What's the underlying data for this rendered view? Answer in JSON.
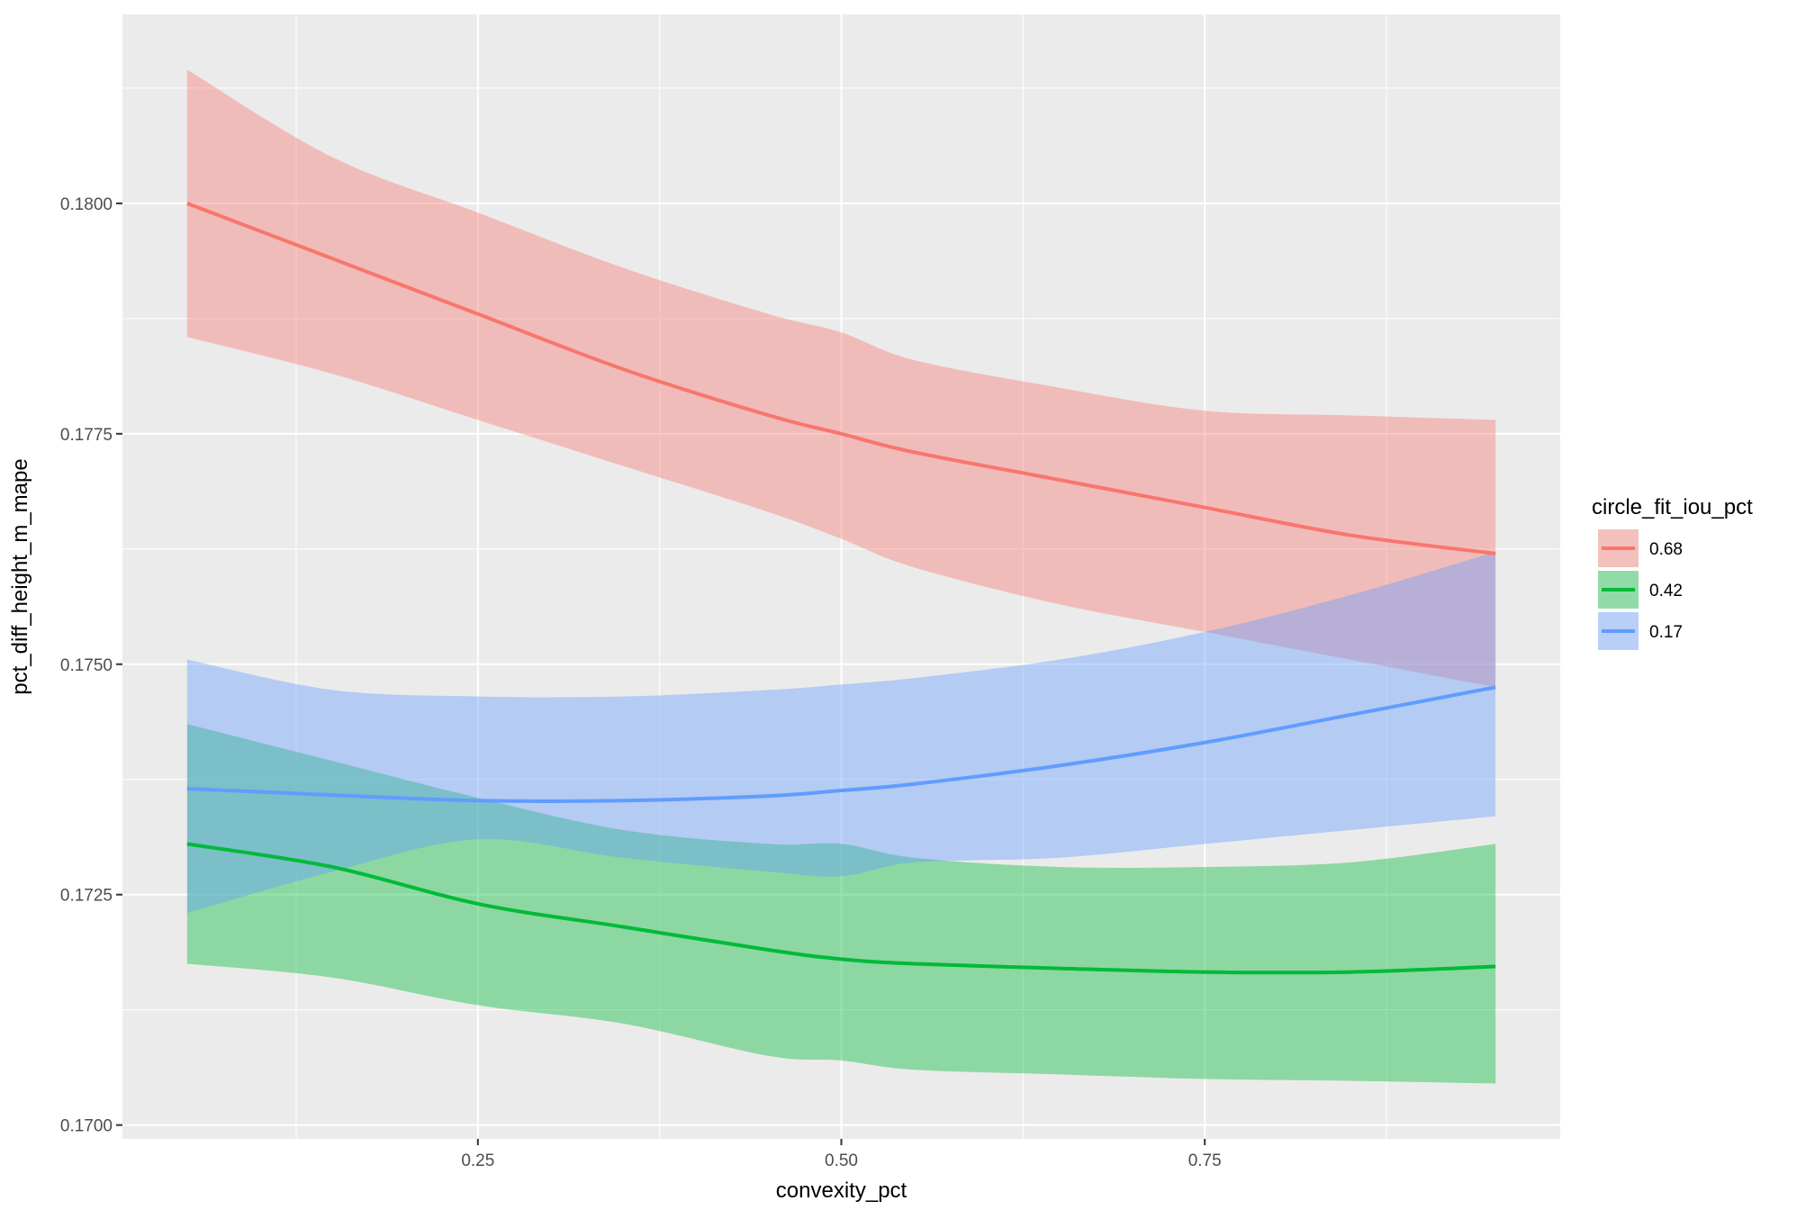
{
  "chart_data": {
    "type": "line",
    "xlabel": "convexity_pct",
    "ylabel": "pct_diff_height_m_mape",
    "xlim": [
      0.0055,
      0.9945
    ],
    "ylim": [
      0.16985,
      0.18205
    ],
    "x_ticks": [
      0.25,
      0.5,
      0.75
    ],
    "x_tick_labels": [
      "0.25",
      "0.50",
      "0.75"
    ],
    "y_ticks": [
      0.17,
      0.1725,
      0.175,
      0.1775,
      0.18
    ],
    "y_tick_labels": [
      "0.1700",
      "0.1725",
      "0.1750",
      "0.1775",
      "0.1800"
    ],
    "grid": true,
    "background": "#EBEBEB",
    "legend": {
      "title": "circle_fit_iou_pct",
      "position": "right"
    },
    "x": [
      0.05,
      0.15,
      0.25,
      0.35,
      0.45,
      0.5,
      0.55,
      0.65,
      0.75,
      0.85,
      0.95
    ],
    "series": [
      {
        "name": "0.68",
        "color": "#F8766D",
        "fill": "#F8766D",
        "values": [
          0.18,
          0.1794,
          0.1788,
          0.1782,
          0.1777,
          0.1775,
          0.1773,
          0.177,
          0.1767,
          0.1764,
          0.1762
        ],
        "lower": [
          0.17855,
          0.17815,
          0.17765,
          0.17715,
          0.17665,
          0.17636,
          0.17605,
          0.17565,
          0.17535,
          0.17505,
          0.17475
        ],
        "upper": [
          0.18145,
          0.1805,
          0.1799,
          0.1793,
          0.1788,
          0.1786,
          0.1783,
          0.178,
          0.17775,
          0.1777,
          0.17765
        ]
      },
      {
        "name": "0.42",
        "color": "#00BA38",
        "fill": "#00BA38",
        "values": [
          0.17305,
          0.1728,
          0.1724,
          0.17215,
          0.1719,
          0.1718,
          0.17175,
          0.1717,
          0.17166,
          0.17166,
          0.17172
        ],
        "lower": [
          0.17175,
          0.1716,
          0.1713,
          0.1711,
          0.17075,
          0.1707,
          0.1706,
          0.17055,
          0.1705,
          0.17048,
          0.17045
        ],
        "upper": [
          0.17435,
          0.17395,
          0.17355,
          0.1732,
          0.17305,
          0.17305,
          0.1729,
          0.1728,
          0.1728,
          0.17285,
          0.17305
        ]
      },
      {
        "name": "0.17",
        "color": "#619CFF",
        "fill": "#619CFF",
        "values": [
          0.17365,
          0.17358,
          0.17352,
          0.17352,
          0.17357,
          0.17363,
          0.1737,
          0.1739,
          0.17415,
          0.17445,
          0.17475
        ],
        "lower": [
          0.1723,
          0.17275,
          0.1731,
          0.1729,
          0.17275,
          0.1727,
          0.17285,
          0.1729,
          0.17305,
          0.1732,
          0.17335
        ],
        "upper": [
          0.17505,
          0.17472,
          0.17465,
          0.17465,
          0.17472,
          0.17478,
          0.17485,
          0.17505,
          0.17535,
          0.17575,
          0.17622
        ]
      }
    ]
  }
}
